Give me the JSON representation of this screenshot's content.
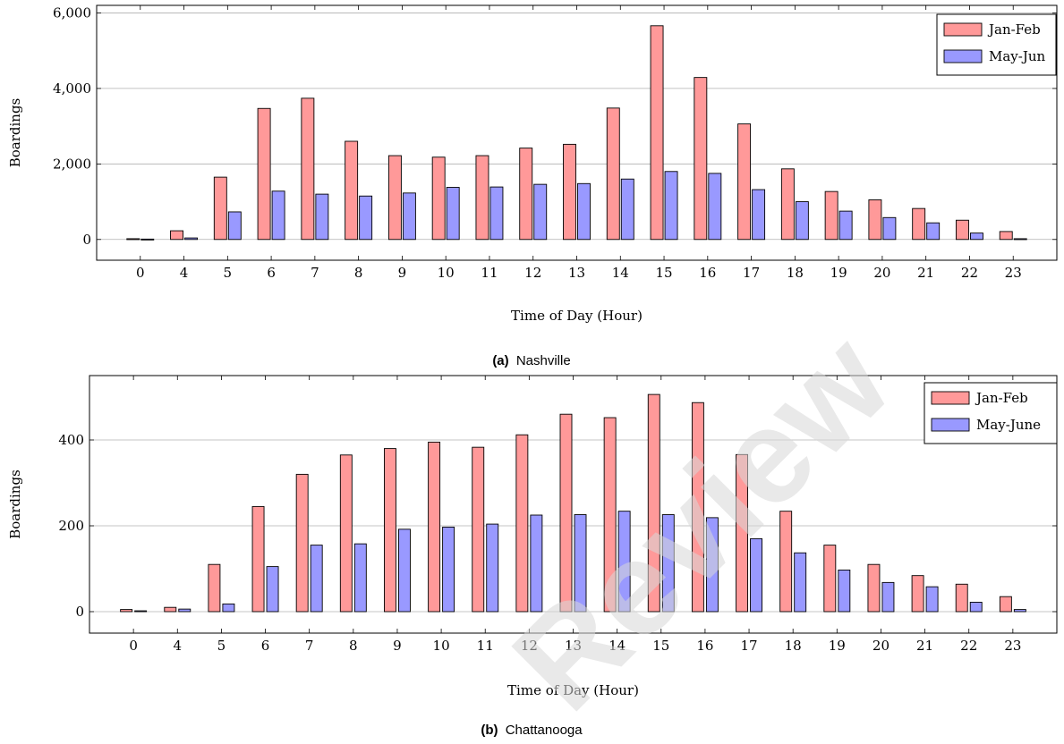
{
  "colors": {
    "series_a": "#ff9999",
    "series_b": "#9999ff",
    "grid": "#b0b0b0",
    "axis": "#000000",
    "watermark": "#d8d8d8"
  },
  "watermark": {
    "text": "Review"
  },
  "chart_data": [
    {
      "type": "bar",
      "caption_tag": "(a)",
      "caption_text": "Nashville",
      "xlabel": "Time of Day (Hour)",
      "ylabel": "Boardings",
      "categories": [
        "0",
        "4",
        "5",
        "6",
        "7",
        "8",
        "9",
        "10",
        "11",
        "12",
        "13",
        "14",
        "15",
        "16",
        "17",
        "18",
        "19",
        "20",
        "21",
        "22",
        "23"
      ],
      "ylim": [
        -550,
        6200
      ],
      "yticks": [
        0,
        2000,
        4000,
        6000
      ],
      "ytick_labels": [
        "0",
        "2,000",
        "4,000",
        "6,000"
      ],
      "grid": true,
      "legend": "top-right",
      "series": [
        {
          "name": "Jan-Feb",
          "values": [
            20,
            230,
            1650,
            3470,
            3740,
            2600,
            2220,
            2180,
            2220,
            2420,
            2520,
            3480,
            5660,
            4290,
            3060,
            1870,
            1270,
            1050,
            820,
            510,
            210
          ]
        },
        {
          "name": "May-Jun",
          "values": [
            10,
            40,
            730,
            1280,
            1200,
            1150,
            1230,
            1380,
            1390,
            1460,
            1480,
            1600,
            1800,
            1750,
            1320,
            1000,
            750,
            580,
            440,
            170,
            20
          ]
        }
      ]
    },
    {
      "type": "bar",
      "caption_tag": "(b)",
      "caption_text": "Chattanooga",
      "xlabel": "Time of Day (Hour)",
      "ylabel": "Boardings",
      "categories": [
        "0",
        "4",
        "5",
        "6",
        "7",
        "8",
        "9",
        "10",
        "11",
        "12",
        "13",
        "14",
        "15",
        "16",
        "17",
        "18",
        "19",
        "20",
        "21",
        "22",
        "23"
      ],
      "ylim": [
        -50,
        550
      ],
      "yticks": [
        0,
        200,
        400
      ],
      "ytick_labels": [
        "0",
        "200",
        "400"
      ],
      "grid": true,
      "legend": "top-right",
      "series": [
        {
          "name": "Jan-Feb",
          "values": [
            5,
            10,
            110,
            245,
            320,
            365,
            380,
            395,
            383,
            412,
            460,
            452,
            506,
            487,
            366,
            234,
            155,
            110,
            84,
            64,
            35
          ]
        },
        {
          "name": "May-June",
          "values": [
            2,
            6,
            18,
            105,
            155,
            158,
            192,
            197,
            204,
            225,
            226,
            234,
            226,
            219,
            170,
            137,
            97,
            68,
            58,
            22,
            5
          ]
        }
      ]
    }
  ]
}
